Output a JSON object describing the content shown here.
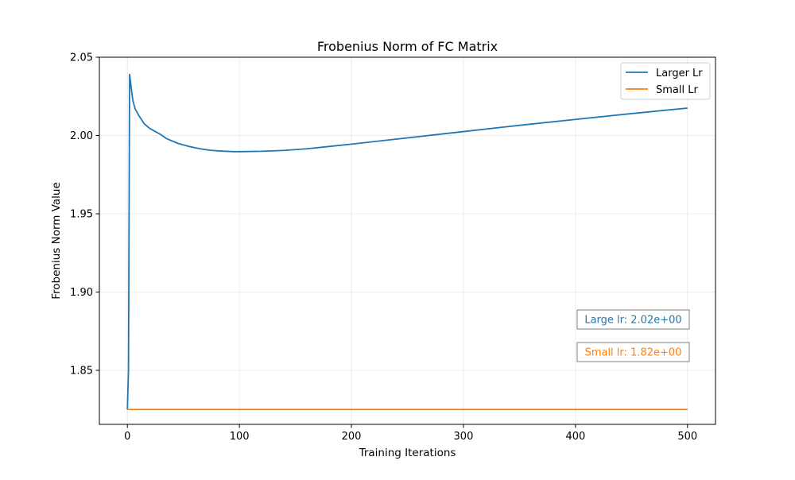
{
  "chart_data": {
    "type": "line",
    "title": "Frobenius Norm of FC Matrix",
    "xlabel": "Training Iterations",
    "ylabel": "Frobenius Norm Value",
    "xlim": [
      -25,
      525
    ],
    "ylim": [
      1.8155,
      2.05
    ],
    "xticks": [
      0,
      100,
      200,
      300,
      400,
      500
    ],
    "xtick_labels": [
      "0",
      "100",
      "200",
      "300",
      "400",
      "500"
    ],
    "yticks": [
      1.85,
      1.9,
      1.95,
      2.0,
      2.05
    ],
    "ytick_labels": [
      "1.85",
      "1.90",
      "1.95",
      "2.00",
      "2.05"
    ],
    "grid": true,
    "legend_position": "top-right",
    "series": [
      {
        "name": "Larger Lr",
        "color": "#1f77b4",
        "x": [
          0,
          1,
          2,
          3,
          4,
          5,
          7,
          10,
          15,
          20,
          25,
          30,
          35,
          45,
          55,
          65,
          75,
          85,
          95,
          100,
          120,
          140,
          160,
          180,
          200,
          250,
          300,
          350,
          400,
          450,
          500
        ],
        "y": [
          1.825,
          1.85,
          2.039,
          2.033,
          2.027,
          2.022,
          2.017,
          2.013,
          2.0075,
          2.0045,
          2.0025,
          2.0005,
          1.998,
          1.995,
          1.993,
          1.9915,
          1.9905,
          1.99,
          1.9897,
          1.9897,
          1.9899,
          1.9905,
          1.9915,
          1.993,
          1.9945,
          1.9985,
          2.0025,
          2.0065,
          2.0103,
          2.014,
          2.0175
        ]
      },
      {
        "name": "Small Lr",
        "color": "#ff7f0e",
        "x": [
          0,
          500
        ],
        "y": [
          1.825,
          1.825
        ]
      }
    ],
    "annotations": [
      {
        "text": "Large lr: 2.02e+00",
        "color": "#1f77b4"
      },
      {
        "text": "Small lr: 1.82e+00",
        "color": "#ff7f0e"
      }
    ]
  }
}
